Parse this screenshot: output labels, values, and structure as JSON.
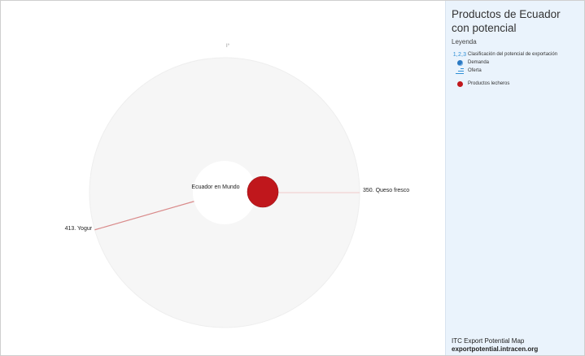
{
  "sidebar": {
    "title": "Productos de Ecuador con potencial",
    "legend_heading": "Leyenda",
    "legend_items": [
      {
        "symbol": "1,2,3",
        "label": "Clasificación del potencial de exportación"
      },
      {
        "symbol": "globe-icon",
        "label": "Demanda"
      },
      {
        "symbol": "supply-bars-icon",
        "label": "Oferta"
      },
      {
        "symbol": "dairy-dot",
        "label": "Productos lecheros",
        "color": "#c0171c"
      }
    ],
    "footer_line1": "ITC Export Potential Map",
    "footer_line2": "exportpotential.intracen.org"
  },
  "chart_data": {
    "type": "radial",
    "center_label": "Ecuador en Mundo",
    "compass_label": "I°",
    "category_color": "#c0171c",
    "products": [
      {
        "rank": 350,
        "name": "Queso fresco",
        "label": "350. Queso fresco",
        "angle_deg": 90,
        "bubble_size": 1.0
      },
      {
        "rank": 413,
        "name": "Yogur",
        "label": "413. Yogur",
        "angle_deg": 254,
        "bubble_size": 0.0
      }
    ]
  }
}
